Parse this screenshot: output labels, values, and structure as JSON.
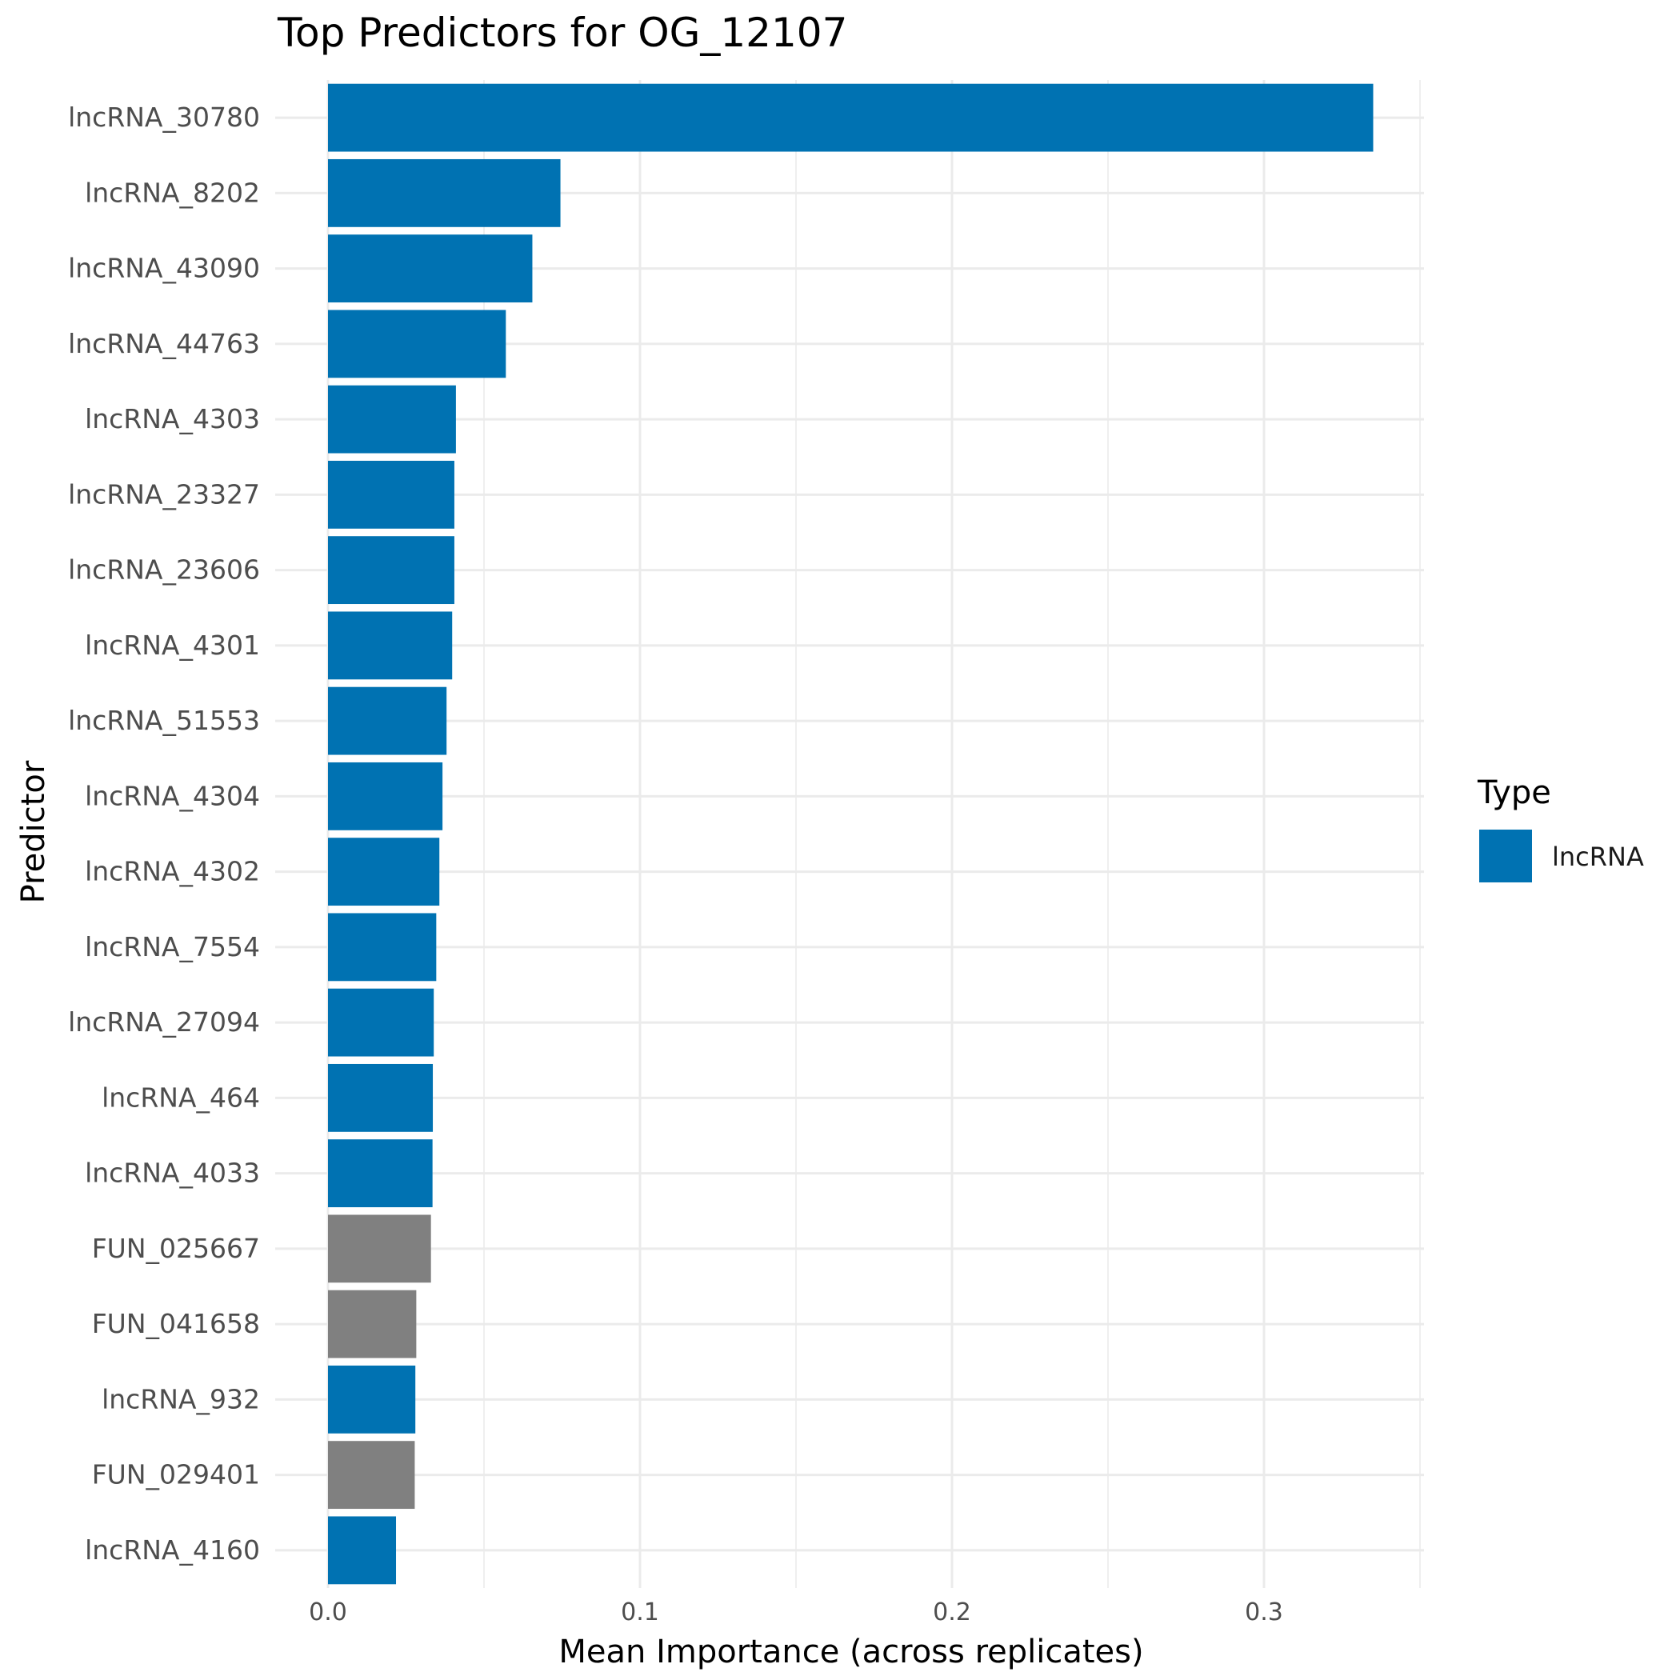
{
  "chart_data": {
    "type": "bar",
    "orientation": "horizontal",
    "title": "Top Predictors for OG_12107",
    "xlabel": "Mean Importance (across replicates)",
    "ylabel": "Predictor",
    "xlim": [
      0,
      0.35
    ],
    "x_ticks": [
      "0.0",
      "0.1",
      "0.2",
      "0.3"
    ],
    "x_tick_values": [
      0,
      0.1,
      0.2,
      0.3
    ],
    "grid": true,
    "legend": {
      "title": "Type",
      "position": "right",
      "entries": [
        {
          "label": "lncRNA",
          "color": "#0072B2"
        }
      ]
    },
    "colors": {
      "lncRNA": "#0072B2",
      "other": "#808080"
    },
    "bars": [
      {
        "label": "lncRNA_30780",
        "value": 0.335,
        "type": "lncRNA"
      },
      {
        "label": "lncRNA_8202",
        "value": 0.0745,
        "type": "lncRNA"
      },
      {
        "label": "lncRNA_43090",
        "value": 0.0655,
        "type": "lncRNA"
      },
      {
        "label": "lncRNA_44763",
        "value": 0.057,
        "type": "lncRNA"
      },
      {
        "label": "lncRNA_4303",
        "value": 0.041,
        "type": "lncRNA"
      },
      {
        "label": "lncRNA_23327",
        "value": 0.0405,
        "type": "lncRNA"
      },
      {
        "label": "lncRNA_23606",
        "value": 0.0405,
        "type": "lncRNA"
      },
      {
        "label": "lncRNA_4301",
        "value": 0.0398,
        "type": "lncRNA"
      },
      {
        "label": "lncRNA_51553",
        "value": 0.038,
        "type": "lncRNA"
      },
      {
        "label": "lncRNA_4304",
        "value": 0.0367,
        "type": "lncRNA"
      },
      {
        "label": "lncRNA_4302",
        "value": 0.0357,
        "type": "lncRNA"
      },
      {
        "label": "lncRNA_7554",
        "value": 0.0347,
        "type": "lncRNA"
      },
      {
        "label": "lncRNA_27094",
        "value": 0.0339,
        "type": "lncRNA"
      },
      {
        "label": "lncRNA_464",
        "value": 0.0336,
        "type": "lncRNA"
      },
      {
        "label": "lncRNA_4033",
        "value": 0.0335,
        "type": "lncRNA"
      },
      {
        "label": "FUN_025667",
        "value": 0.033,
        "type": "other"
      },
      {
        "label": "FUN_041658",
        "value": 0.0283,
        "type": "other"
      },
      {
        "label": "lncRNA_932",
        "value": 0.028,
        "type": "lncRNA"
      },
      {
        "label": "FUN_029401",
        "value": 0.0278,
        "type": "other"
      },
      {
        "label": "lncRNA_4160",
        "value": 0.0218,
        "type": "lncRNA"
      }
    ]
  }
}
